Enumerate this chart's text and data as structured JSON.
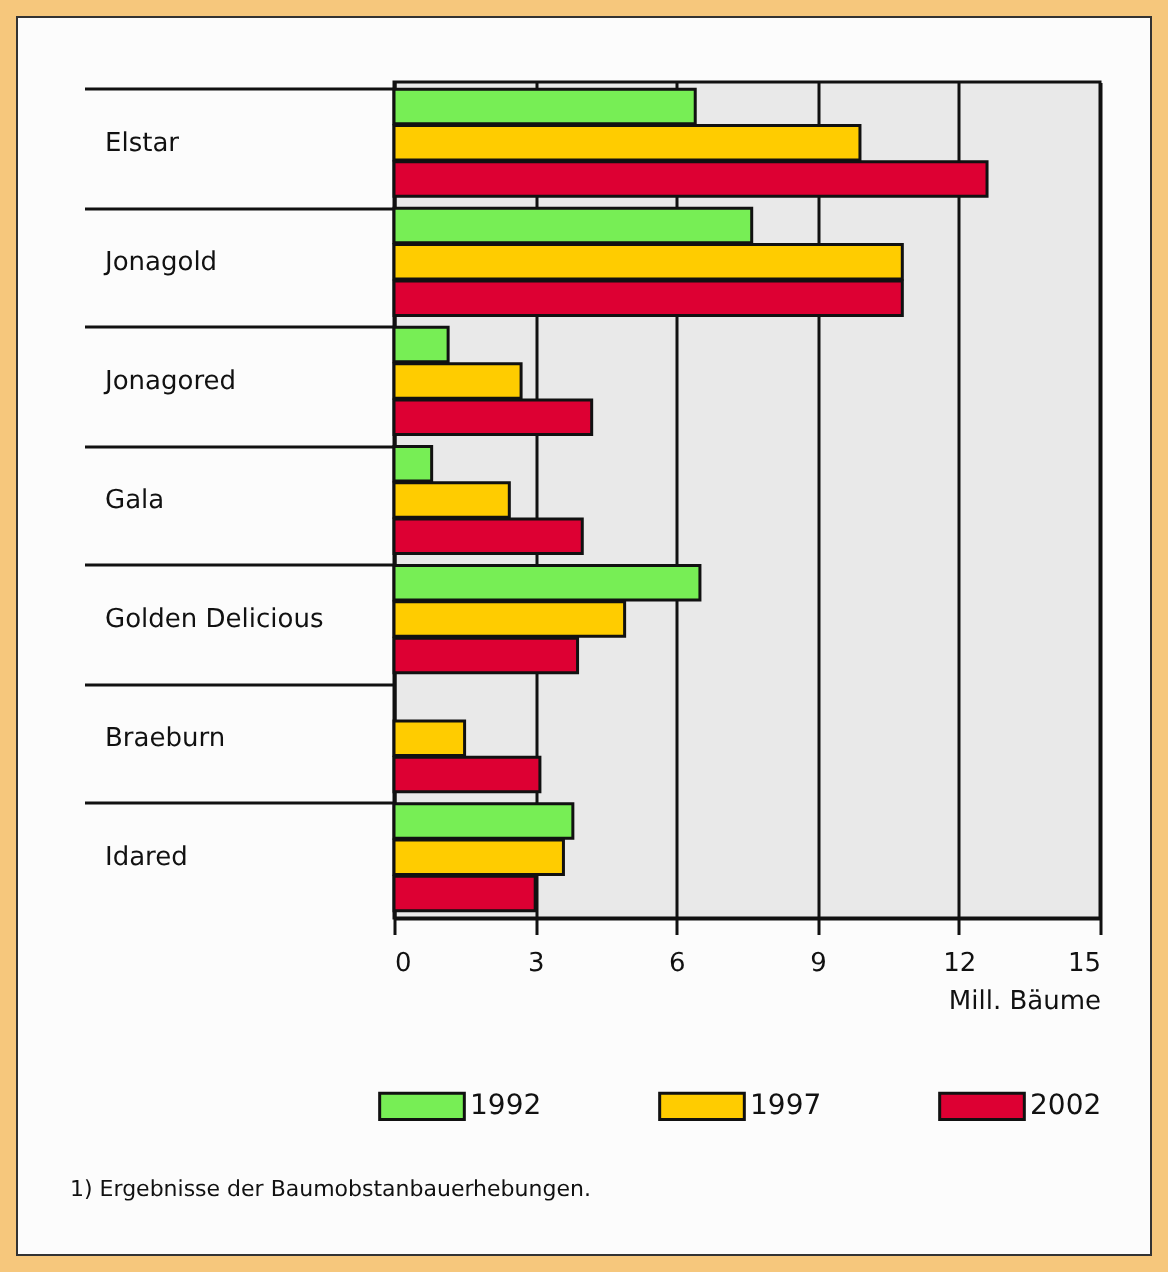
{
  "chart_data": {
    "type": "bar",
    "orientation": "horizontal",
    "categories": [
      "Elstar",
      "Jonagold",
      "Jonagored",
      "Gala",
      "Golden Delicious",
      "Braeburn",
      "Idared"
    ],
    "series": [
      {
        "name": "1992",
        "color": "#77ee55",
        "values": [
          6.4,
          7.6,
          1.15,
          0.8,
          6.5,
          null,
          3.8
        ]
      },
      {
        "name": "1997",
        "color": "#ffcc00",
        "values": [
          9.9,
          10.8,
          2.7,
          2.45,
          4.9,
          1.5,
          3.6
        ]
      },
      {
        "name": "2002",
        "color": "#dd0033",
        "values": [
          12.6,
          10.8,
          4.2,
          4.0,
          3.9,
          3.1,
          3.0
        ]
      }
    ],
    "xlabel": "Mill. Bäume",
    "xlim": [
      0,
      15
    ],
    "xticks": [
      0,
      3,
      6,
      9,
      12,
      15
    ],
    "grid": "x",
    "legend": "bottom",
    "annotations": [
      "1) Ergebnisse der Baumobstanbauerhebungen."
    ]
  }
}
